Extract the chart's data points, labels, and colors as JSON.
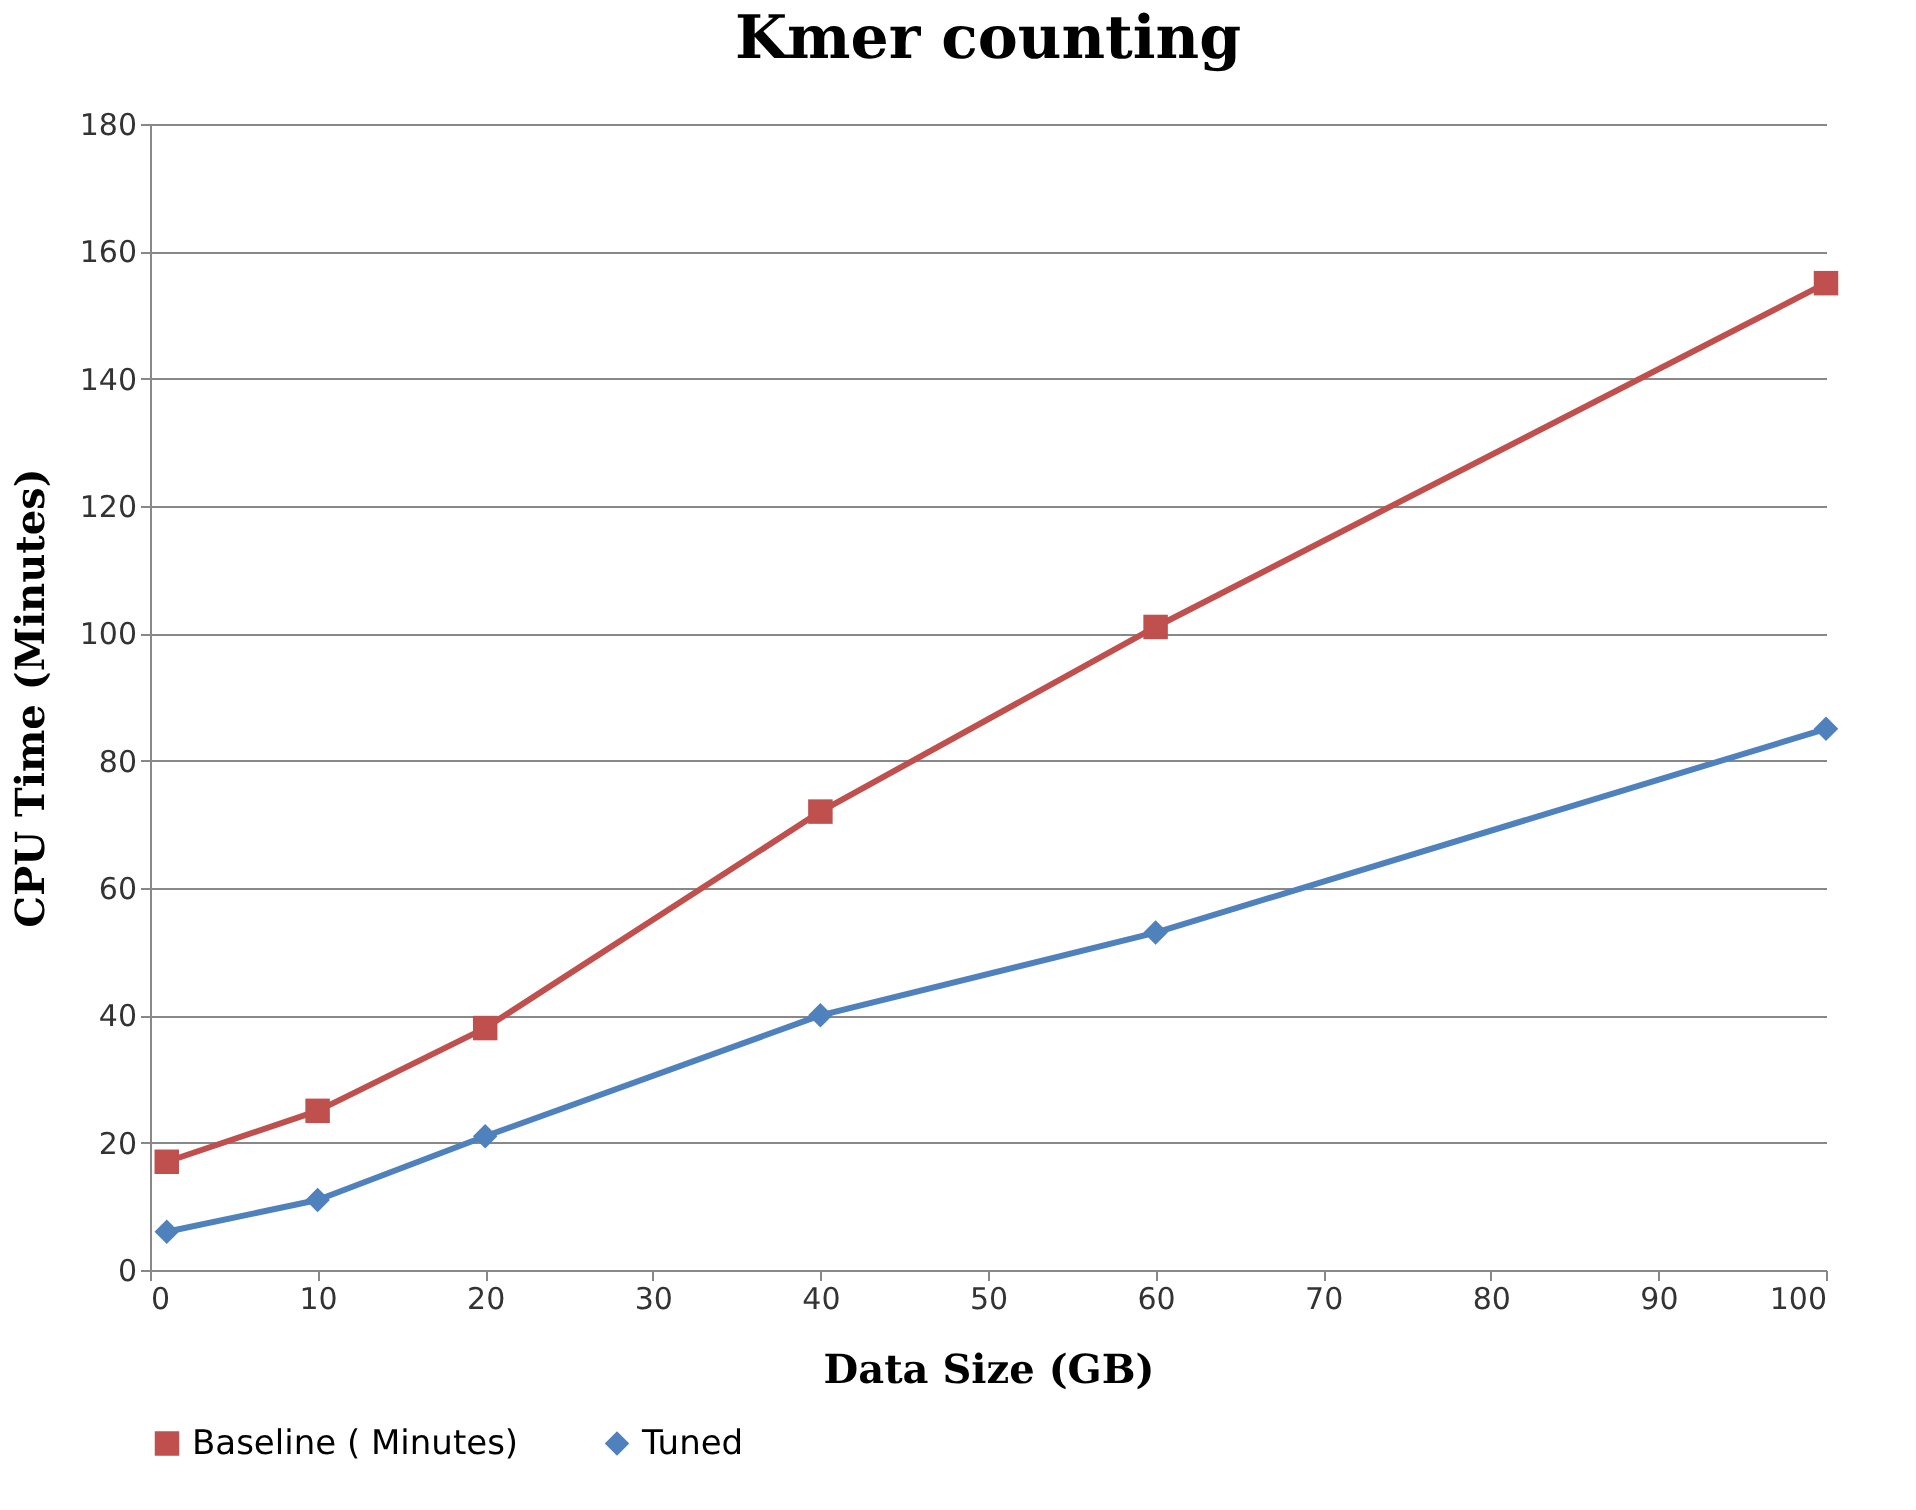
{
  "chart_data": {
    "type": "line",
    "title": "Kmer counting",
    "xlabel": "Data Size (GB)",
    "ylabel": "CPU Time (Minutes)",
    "x": [
      1,
      10,
      20,
      40,
      60,
      100
    ],
    "series": [
      {
        "name": "Baseline ( Minutes)",
        "color": "#c0504d",
        "marker": "square",
        "values": [
          17,
          25,
          38,
          72,
          101,
          155
        ]
      },
      {
        "name": "Tuned",
        "color": "#4f81bd",
        "marker": "diamond",
        "values": [
          6,
          11,
          21,
          40,
          53,
          85
        ]
      }
    ],
    "xlim": [
      0,
      100
    ],
    "xticks": [
      0,
      10,
      20,
      30,
      40,
      50,
      60,
      70,
      80,
      90,
      100
    ],
    "ylim": [
      0,
      180
    ],
    "yticks": [
      0,
      20,
      40,
      60,
      80,
      100,
      120,
      140,
      160,
      180
    ],
    "grid": "y",
    "legend": "bottom",
    "line_style": "solid"
  }
}
